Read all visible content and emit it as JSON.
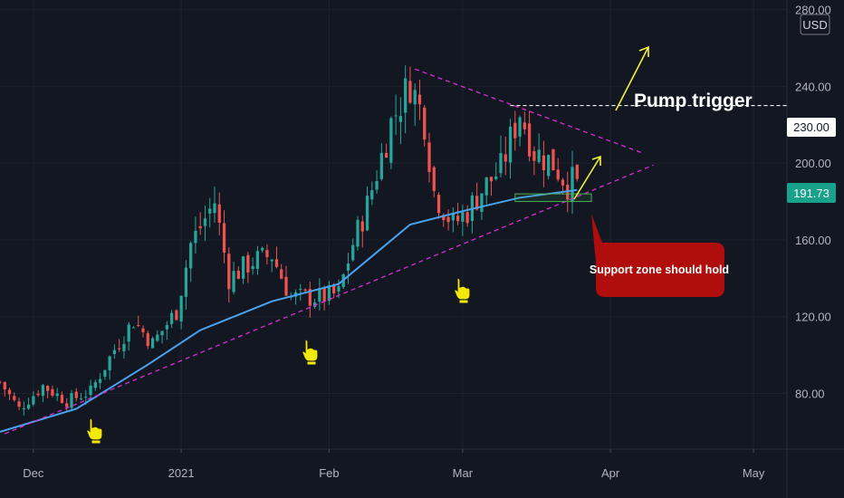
{
  "currency_badge": "USD",
  "chart_data": {
    "type": "candlestick",
    "title": "",
    "y_ticks": [
      80,
      120,
      160,
      200,
      240,
      280
    ],
    "y_tick_labels": [
      "80.00",
      "120.00",
      "160.00",
      "200.00",
      "240.00",
      "280.00"
    ],
    "ylim": [
      51,
      285
    ],
    "x_labels": [
      {
        "label": "Dec",
        "date": "2020-12-01"
      },
      {
        "label": "2021",
        "date": "2021-01-01"
      },
      {
        "label": "Feb",
        "date": "2021-02-01"
      },
      {
        "label": "Mar",
        "date": "2021-03-01"
      },
      {
        "label": "Apr",
        "date": "2021-04-01"
      },
      {
        "label": "May",
        "date": "2021-05-01"
      }
    ],
    "xlim": [
      "2020-11-24",
      "2021-05-08"
    ],
    "last_price": 191.73,
    "last_price_label": "191.73",
    "resistance_level": 230,
    "resistance_label": "230.00",
    "colors": {
      "background": "#131722",
      "up": "#26a69a",
      "down": "#ef5350",
      "moving_average": "#4aa3f0",
      "trendline": "#d62fd6",
      "arrow": "#f2f23a",
      "support_box": "#4caf50",
      "callout": "#b00d0d"
    },
    "candle_anchors": [
      {
        "date": "2020-11-24",
        "close": 86
      },
      {
        "date": "2020-11-28",
        "close": 72
      },
      {
        "date": "2020-12-03",
        "close": 84
      },
      {
        "date": "2020-12-08",
        "close": 76
      },
      {
        "date": "2020-12-13",
        "close": 81
      },
      {
        "date": "2020-12-18",
        "close": 103
      },
      {
        "date": "2020-12-22",
        "close": 118
      },
      {
        "date": "2020-12-26",
        "close": 106
      },
      {
        "date": "2020-12-31",
        "close": 123
      },
      {
        "date": "2021-01-03",
        "close": 158
      },
      {
        "date": "2021-01-08",
        "close": 180
      },
      {
        "date": "2021-01-11",
        "close": 140
      },
      {
        "date": "2021-01-16",
        "close": 149
      },
      {
        "date": "2021-01-20",
        "close": 152
      },
      {
        "date": "2021-01-24",
        "close": 130
      },
      {
        "date": "2021-01-30",
        "close": 130
      },
      {
        "date": "2021-02-03",
        "close": 132
      },
      {
        "date": "2021-02-06",
        "close": 158
      },
      {
        "date": "2021-02-09",
        "close": 178
      },
      {
        "date": "2021-02-14",
        "close": 221
      },
      {
        "date": "2021-02-18",
        "close": 242
      },
      {
        "date": "2021-02-21",
        "close": 222
      },
      {
        "date": "2021-02-23",
        "close": 185
      },
      {
        "date": "2021-02-27",
        "close": 168
      },
      {
        "date": "2021-03-02",
        "close": 175
      },
      {
        "date": "2021-03-05",
        "close": 186
      },
      {
        "date": "2021-03-09",
        "close": 197
      },
      {
        "date": "2021-03-13",
        "close": 227
      },
      {
        "date": "2021-03-16",
        "close": 206
      },
      {
        "date": "2021-03-20",
        "close": 200
      },
      {
        "date": "2021-03-23",
        "close": 189
      },
      {
        "date": "2021-03-25",
        "close": 191.73
      }
    ],
    "moving_average": [
      {
        "date": "2020-11-24",
        "value": 60
      },
      {
        "date": "2020-12-10",
        "value": 72
      },
      {
        "date": "2020-12-25",
        "value": 95
      },
      {
        "date": "2021-01-05",
        "value": 113
      },
      {
        "date": "2021-01-20",
        "value": 128
      },
      {
        "date": "2021-02-03",
        "value": 137
      },
      {
        "date": "2021-02-18",
        "value": 168
      },
      {
        "date": "2021-03-01",
        "value": 175
      },
      {
        "date": "2021-03-13",
        "value": 182
      },
      {
        "date": "2021-03-25",
        "value": 186
      }
    ],
    "trendlines": [
      {
        "name": "support",
        "from": {
          "date": "2020-11-25",
          "value": 59
        },
        "to": {
          "date": "2021-04-10",
          "value": 199
        }
      },
      {
        "name": "resistance",
        "from": {
          "date": "2021-02-19",
          "value": 249
        },
        "to": {
          "date": "2021-04-08",
          "value": 205
        }
      }
    ],
    "support_zone": {
      "date_from": "2021-03-12",
      "date_to": "2021-03-28",
      "value_from": 180,
      "value_to": 184
    }
  },
  "annotations": {
    "pump_trigger": "Pump trigger",
    "support_zone": "Support zone should hold"
  }
}
